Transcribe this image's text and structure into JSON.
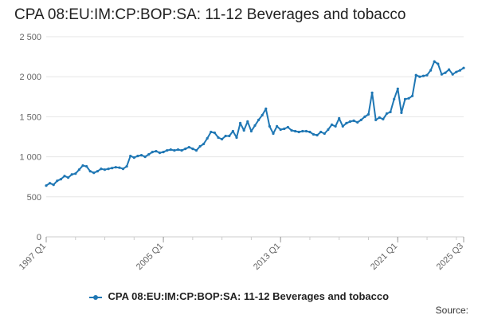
{
  "title": "CPA 08:EU:IM:CP:BOP:SA: 11-12 Beverages and tobacco",
  "source_label": "Source:",
  "chart_data": {
    "type": "line",
    "title": "CPA 08:EU:IM:CP:BOP:SA: 11-12 Beverages and tobacco",
    "xlabel": "",
    "ylabel": "",
    "x_ticks": [
      "1997 Q1",
      "2005 Q1",
      "2013 Q1",
      "2021 Q1",
      "2025 Q3"
    ],
    "y_ticks": [
      0,
      500,
      1000,
      1500,
      2000,
      2500
    ],
    "y_tick_labels": [
      "0",
      "500",
      "1 000",
      "1 500",
      "2 000",
      "2 500"
    ],
    "ylim": [
      0,
      2500
    ],
    "grid": true,
    "legend_position": "bottom",
    "color": "#1f77b4",
    "series": [
      {
        "name": "CPA 08:EU:IM:CP:BOP:SA: 11-12 Beverages and tobacco",
        "points": [
          [
            "1997-01",
            640
          ],
          [
            "1997-04",
            670
          ],
          [
            "1997-07",
            650
          ],
          [
            "1997-10",
            700
          ],
          [
            "1998-01",
            720
          ],
          [
            "1998-04",
            760
          ],
          [
            "1998-07",
            740
          ],
          [
            "1998-10",
            780
          ],
          [
            "1999-01",
            790
          ],
          [
            "1999-04",
            840
          ],
          [
            "1999-07",
            890
          ],
          [
            "1999-10",
            880
          ],
          [
            "2000-01",
            820
          ],
          [
            "2000-04",
            800
          ],
          [
            "2000-07",
            820
          ],
          [
            "2000-10",
            850
          ],
          [
            "2001-01",
            840
          ],
          [
            "2001-04",
            850
          ],
          [
            "2001-07",
            860
          ],
          [
            "2001-10",
            870
          ],
          [
            "2002-01",
            865
          ],
          [
            "2002-04",
            850
          ],
          [
            "2002-07",
            880
          ],
          [
            "2002-10",
            1010
          ],
          [
            "2003-01",
            990
          ],
          [
            "2003-04",
            1010
          ],
          [
            "2003-07",
            1020
          ],
          [
            "2003-10",
            1000
          ],
          [
            "2004-01",
            1030
          ],
          [
            "2004-04",
            1060
          ],
          [
            "2004-07",
            1070
          ],
          [
            "2004-10",
            1050
          ],
          [
            "2005-01",
            1060
          ],
          [
            "2005-04",
            1080
          ],
          [
            "2005-07",
            1090
          ],
          [
            "2005-10",
            1080
          ],
          [
            "2006-01",
            1090
          ],
          [
            "2006-04",
            1080
          ],
          [
            "2006-07",
            1100
          ],
          [
            "2006-10",
            1120
          ],
          [
            "2007-01",
            1100
          ],
          [
            "2007-04",
            1080
          ],
          [
            "2007-07",
            1130
          ],
          [
            "2007-10",
            1160
          ],
          [
            "2008-01",
            1230
          ],
          [
            "2008-04",
            1310
          ],
          [
            "2008-07",
            1300
          ],
          [
            "2008-10",
            1240
          ],
          [
            "2009-01",
            1220
          ],
          [
            "2009-04",
            1260
          ],
          [
            "2009-07",
            1260
          ],
          [
            "2009-10",
            1320
          ],
          [
            "2010-01",
            1240
          ],
          [
            "2010-04",
            1420
          ],
          [
            "2010-07",
            1330
          ],
          [
            "2010-10",
            1440
          ],
          [
            "2011-01",
            1320
          ],
          [
            "2011-04",
            1390
          ],
          [
            "2011-07",
            1460
          ],
          [
            "2011-10",
            1520
          ],
          [
            "2012-01",
            1600
          ],
          [
            "2012-04",
            1380
          ],
          [
            "2012-07",
            1290
          ],
          [
            "2012-10",
            1380
          ],
          [
            "2013-01",
            1340
          ],
          [
            "2013-04",
            1350
          ],
          [
            "2013-07",
            1370
          ],
          [
            "2013-10",
            1330
          ],
          [
            "2014-01",
            1320
          ],
          [
            "2014-04",
            1310
          ],
          [
            "2014-07",
            1320
          ],
          [
            "2014-10",
            1320
          ],
          [
            "2015-01",
            1310
          ],
          [
            "2015-04",
            1280
          ],
          [
            "2015-07",
            1270
          ],
          [
            "2015-10",
            1310
          ],
          [
            "2016-01",
            1290
          ],
          [
            "2016-04",
            1340
          ],
          [
            "2016-07",
            1400
          ],
          [
            "2016-10",
            1380
          ],
          [
            "2017-01",
            1480
          ],
          [
            "2017-04",
            1380
          ],
          [
            "2017-07",
            1420
          ],
          [
            "2017-10",
            1440
          ],
          [
            "2018-01",
            1450
          ],
          [
            "2018-04",
            1430
          ],
          [
            "2018-07",
            1460
          ],
          [
            "2018-10",
            1500
          ],
          [
            "2019-01",
            1530
          ],
          [
            "2019-04",
            1800
          ],
          [
            "2019-07",
            1460
          ],
          [
            "2019-10",
            1490
          ],
          [
            "2020-01",
            1470
          ],
          [
            "2020-04",
            1540
          ],
          [
            "2020-07",
            1560
          ],
          [
            "2020-10",
            1720
          ],
          [
            "2021-01",
            1850
          ],
          [
            "2021-04",
            1550
          ],
          [
            "2021-07",
            1720
          ],
          [
            "2021-10",
            1730
          ],
          [
            "2022-01",
            1760
          ],
          [
            "2022-04",
            2020
          ],
          [
            "2022-07",
            2000
          ],
          [
            "2022-10",
            2010
          ],
          [
            "2023-01",
            2020
          ],
          [
            "2023-04",
            2080
          ],
          [
            "2023-07",
            2190
          ],
          [
            "2023-10",
            2160
          ],
          [
            "2024-01",
            2030
          ],
          [
            "2024-04",
            2050
          ],
          [
            "2024-07",
            2090
          ],
          [
            "2024-10",
            2030
          ],
          [
            "2025-01",
            2060
          ],
          [
            "2025-04",
            2080
          ],
          [
            "2025-07",
            2110
          ]
        ]
      }
    ]
  }
}
